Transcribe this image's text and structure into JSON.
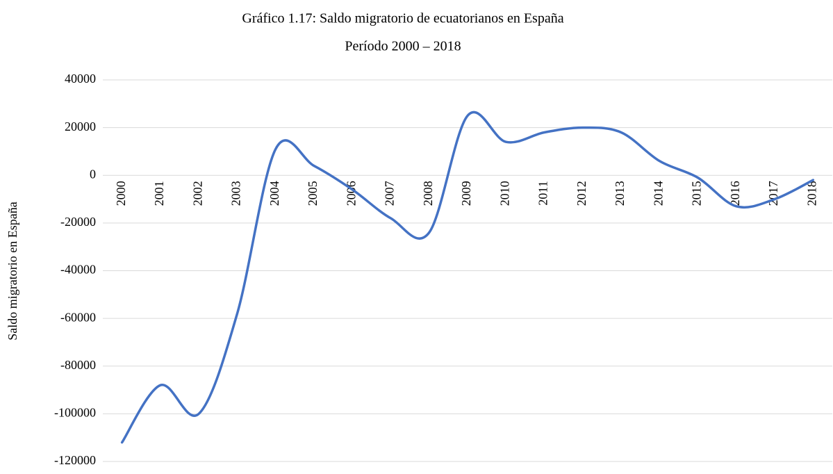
{
  "chart_data": {
    "type": "line",
    "title": "Gráfico 1.17: Saldo migratorio de ecuatorianos en España",
    "subtitle": "Período 2000 – 2018",
    "y_label": "Saldo migratorio en España",
    "categories": [
      "2000",
      "2001",
      "2002",
      "2003",
      "2004",
      "2005",
      "2006",
      "2007",
      "2008",
      "2009",
      "2010",
      "2011",
      "2012",
      "2013",
      "2014",
      "2015",
      "2016",
      "2017",
      "2018"
    ],
    "series": [
      {
        "name": "Saldo migratorio",
        "color": "#4472c4",
        "values": [
          -112000,
          -88000,
          -100000,
          -58000,
          11000,
          4000,
          -6000,
          -18000,
          -24000,
          25000,
          14000,
          18000,
          20000,
          18000,
          6000,
          -1000,
          -13000,
          -10000,
          -2000
        ]
      }
    ],
    "ylim": [
      -120000,
      40000
    ],
    "yticks": [
      -120000,
      -100000,
      -80000,
      -60000,
      -40000,
      -20000,
      0,
      20000,
      40000
    ],
    "grid": true,
    "smooth": true
  }
}
